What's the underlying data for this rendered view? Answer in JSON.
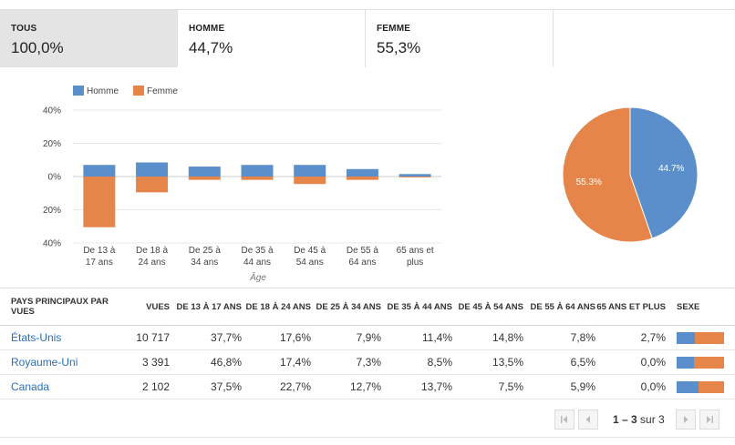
{
  "tabs": [
    {
      "label": "TOUS",
      "value": "100,0%"
    },
    {
      "label": "HOMME",
      "value": "44,7%"
    },
    {
      "label": "FEMME",
      "value": "55,3%"
    }
  ],
  "chart_data": [
    {
      "type": "bar",
      "legend": [
        "Homme",
        "Femme"
      ],
      "legend_position": "top-left",
      "categories": [
        [
          "De 13 à",
          "17 ans"
        ],
        [
          "De 18 à",
          "24 ans"
        ],
        [
          "De 25 à",
          "34 ans"
        ],
        [
          "De 35 à",
          "44 ans"
        ],
        [
          "De 45 à",
          "54 ans"
        ],
        [
          "De 55 à",
          "64 ans"
        ],
        [
          "65 ans et",
          "plus"
        ]
      ],
      "series": [
        {
          "name": "Homme",
          "color": "#5b8fcb",
          "values": [
            7,
            8.5,
            6,
            7,
            7,
            4.5,
            1.5
          ]
        },
        {
          "name": "Femme",
          "color": "#e6854a",
          "values": [
            30.5,
            9.5,
            2,
            2,
            4.5,
            2,
            0.5
          ]
        }
      ],
      "xlabel": "Âge",
      "yticks": [
        "40%",
        "20%",
        "0%",
        "20%",
        "40%"
      ],
      "ylim": [
        -40,
        40
      ],
      "grid": true
    },
    {
      "type": "pie",
      "slices": [
        {
          "label": "44.7%",
          "value": 44.7,
          "color": "#5b8fcb"
        },
        {
          "label": "55.3%",
          "value": 55.3,
          "color": "#e6854a"
        }
      ]
    }
  ],
  "table": {
    "headers": [
      "PAYS PRINCIPAUX PAR VUES",
      "VUES",
      "DE 13 À 17 ANS",
      "DE 18 À 24 ANS",
      "DE 25 À 34 ANS",
      "DE 35 À 44 ANS",
      "DE 45 À 54 ANS",
      "DE 55 À 64 ANS",
      "65 ANS ET PLUS",
      "SEXE"
    ],
    "rows": [
      {
        "country": "États-Unis",
        "views": "10 717",
        "ages": [
          "37,7%",
          "17,6%",
          "7,9%",
          "11,4%",
          "14,8%",
          "7,8%",
          "2,7%"
        ],
        "male_share": 0.38
      },
      {
        "country": "Royaume-Uni",
        "views": "3 391",
        "ages": [
          "46,8%",
          "17,4%",
          "7,3%",
          "8,5%",
          "13,5%",
          "6,5%",
          "0,0%"
        ],
        "male_share": 0.37
      },
      {
        "country": "Canada",
        "views": "2 102",
        "ages": [
          "37,5%",
          "22,7%",
          "12,7%",
          "13,7%",
          "7,5%",
          "5,9%",
          "0,0%"
        ],
        "male_share": 0.46
      }
    ]
  },
  "pagination": {
    "range": "1 – 3",
    "suffix": "sur 3"
  },
  "colors": {
    "male": "#5b8fcb",
    "female": "#e6854a",
    "link": "#2a6ebb"
  }
}
